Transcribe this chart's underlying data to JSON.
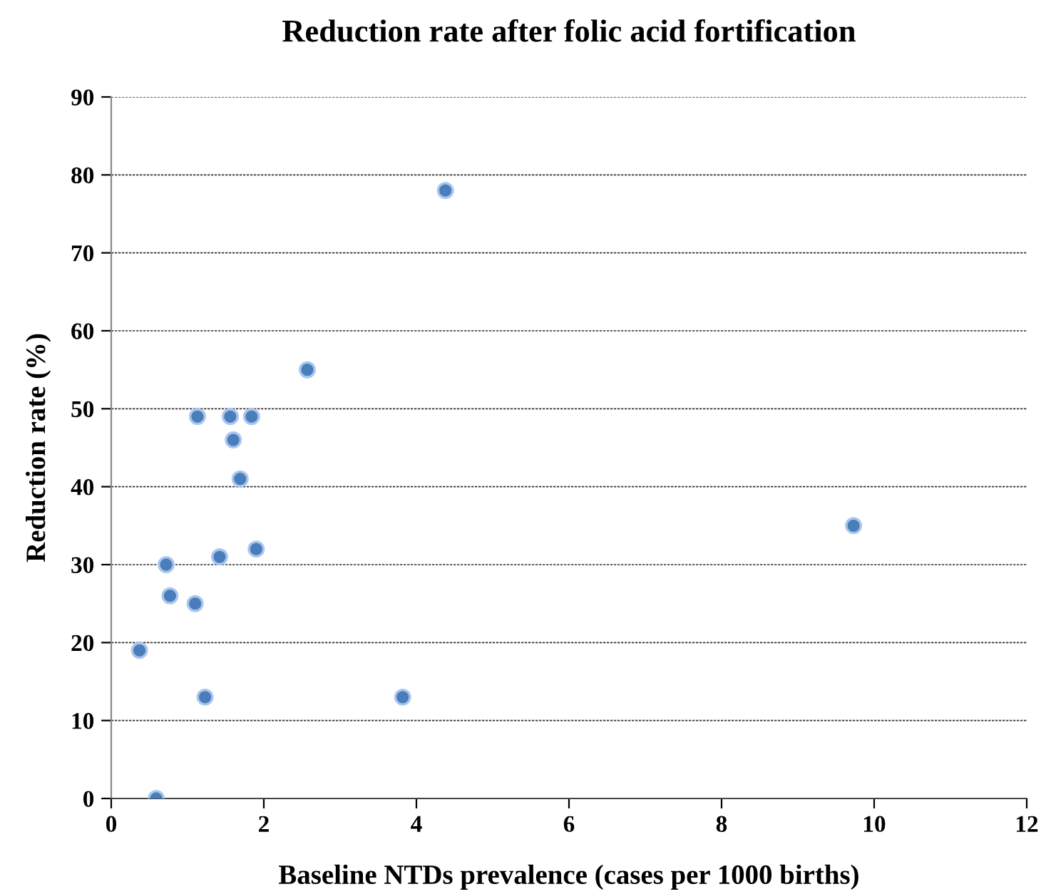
{
  "chart_data": {
    "type": "scatter",
    "title": "Reduction rate after folic acid fortification",
    "xlabel": "Baseline NTDs prevalence (cases per 1000 births)",
    "ylabel": "Reduction rate (%)",
    "x": [
      4.38,
      2.57,
      1.13,
      1.56,
      1.84,
      1.6,
      1.69,
      0.72,
      1.42,
      1.9,
      0.77,
      1.1,
      0.37,
      1.23,
      3.82,
      0.59,
      9.73
    ],
    "series": [
      {
        "color": "#4a7ebb",
        "values": [
          78,
          55,
          49,
          49,
          49,
          46,
          41,
          30,
          31,
          32,
          26,
          25,
          19,
          13,
          13,
          0,
          35
        ]
      }
    ],
    "xlim": [
      0,
      12
    ],
    "xticks": [
      0,
      2,
      4,
      6,
      8,
      10,
      12
    ],
    "ylim": [
      0,
      90
    ],
    "yticks": [
      0,
      10,
      20,
      30,
      40,
      50,
      60,
      70,
      80,
      90
    ],
    "grid": "y",
    "marker": "circle",
    "legend": false
  }
}
